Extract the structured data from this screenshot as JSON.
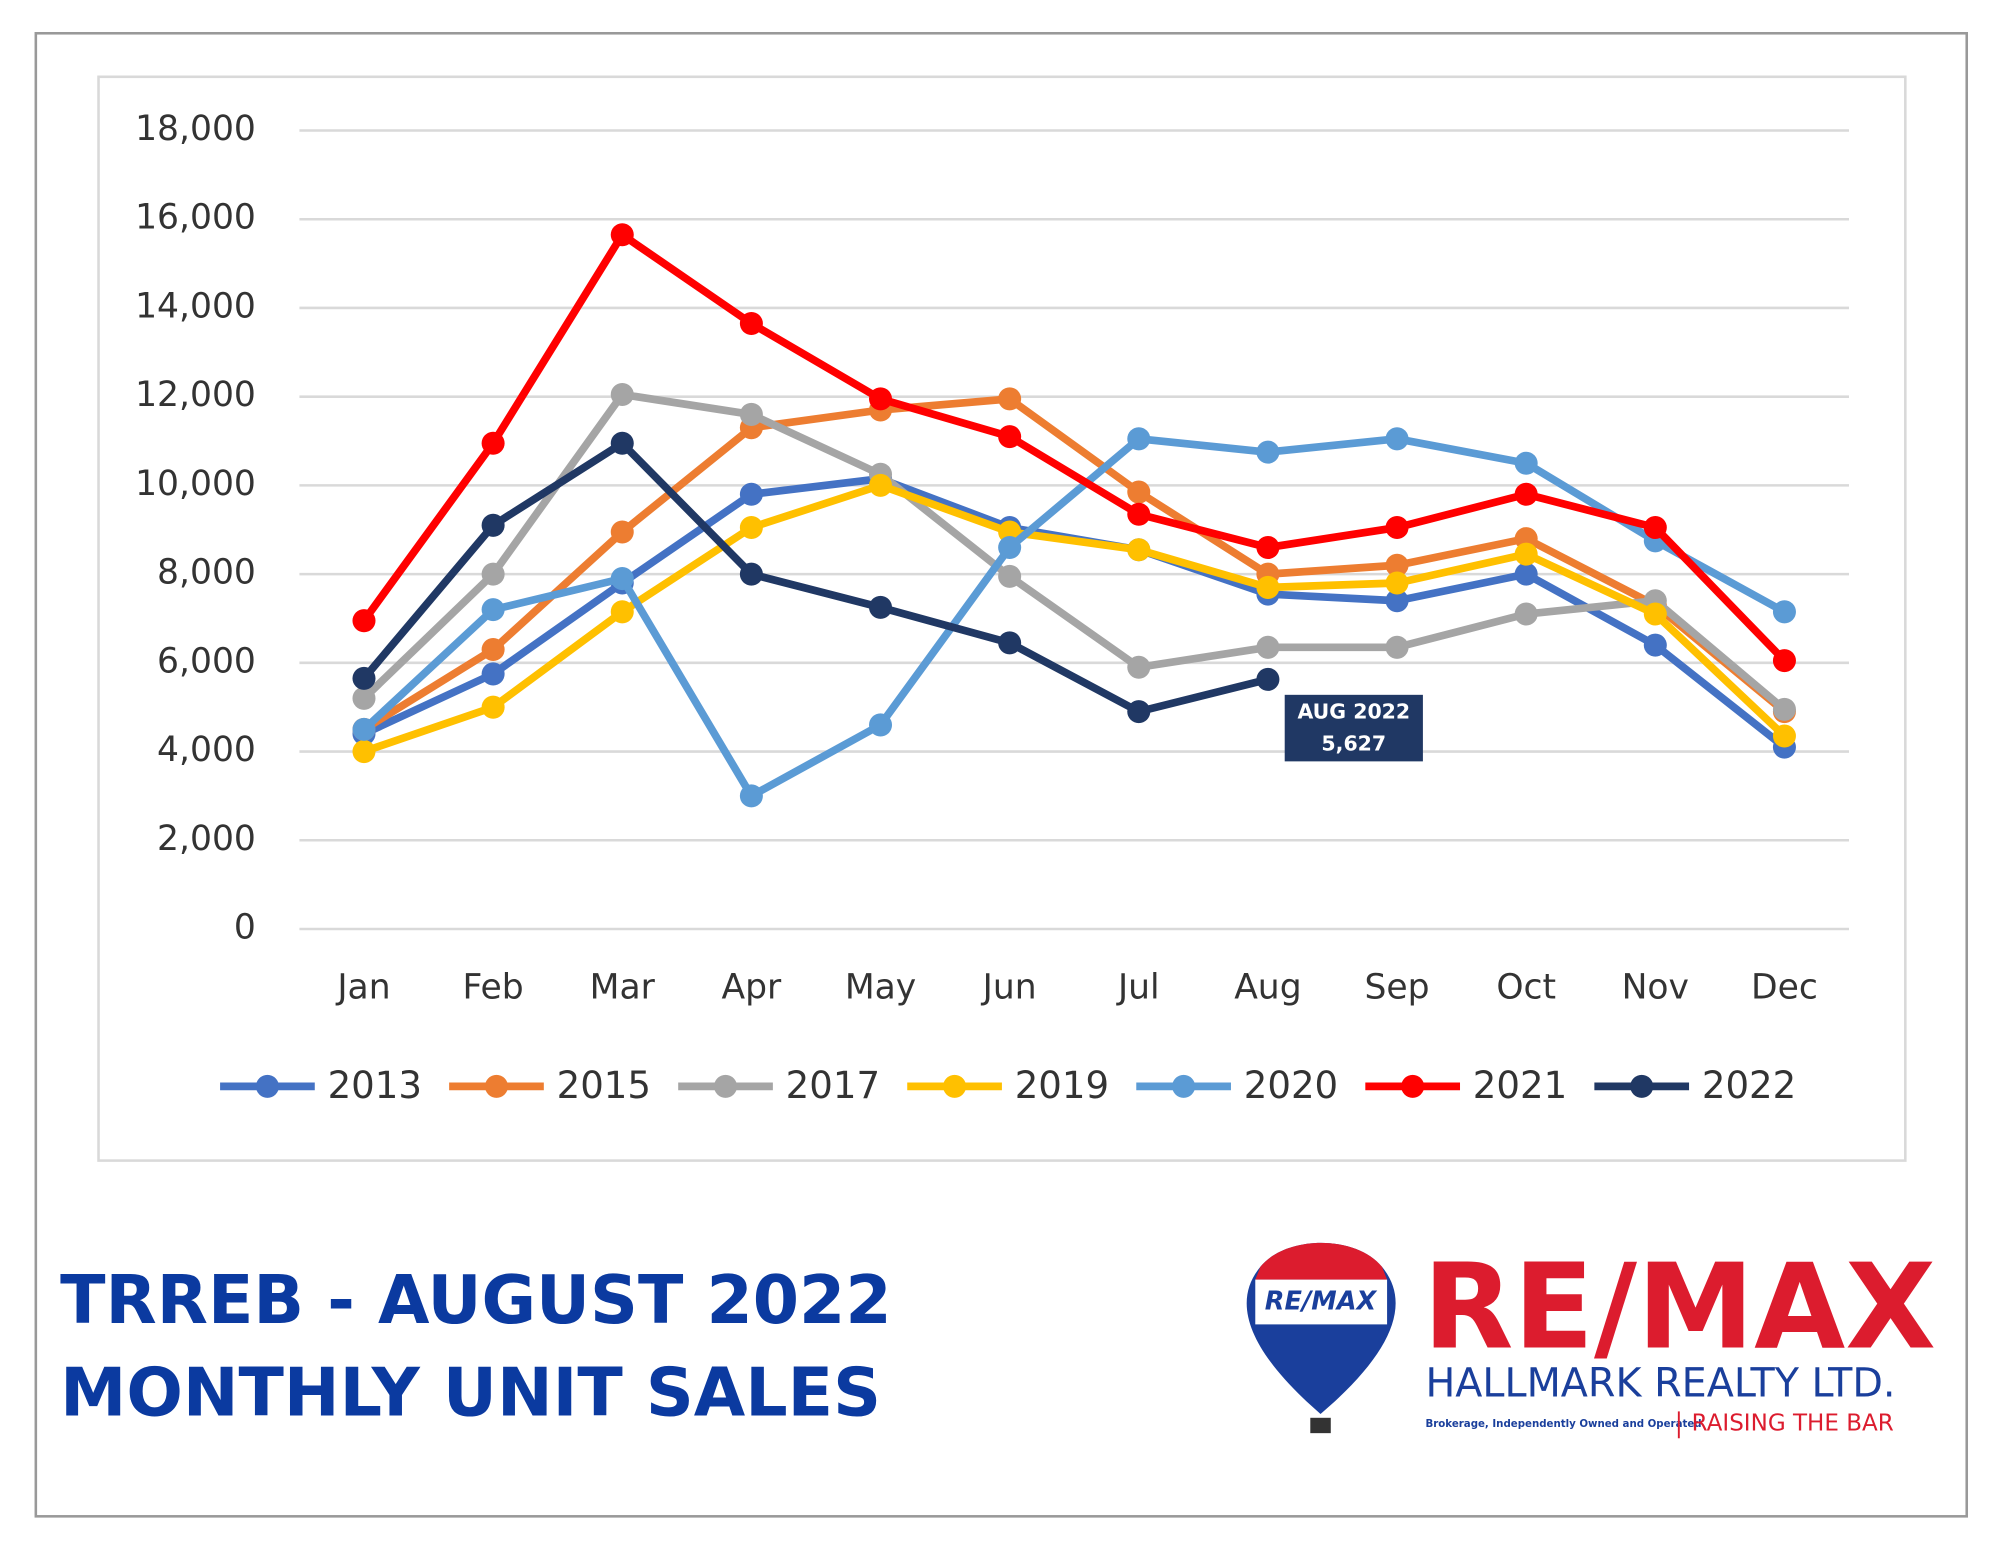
{
  "chart_data": {
    "type": "line",
    "categories": [
      "Jan",
      "Feb",
      "Mar",
      "Apr",
      "May",
      "Jun",
      "Jul",
      "Aug",
      "Sep",
      "Oct",
      "Nov",
      "Dec"
    ],
    "series": [
      {
        "name": "2013",
        "color": "#4472c4",
        "values": [
          4400,
          5750,
          7800,
          9800,
          10150,
          9050,
          8550,
          7550,
          7400,
          8000,
          6400,
          4100
        ]
      },
      {
        "name": "2015",
        "color": "#ed7d31",
        "values": [
          4500,
          6300,
          8950,
          11300,
          11700,
          11950,
          9850,
          8000,
          8200,
          8800,
          7300,
          4900
        ]
      },
      {
        "name": "2017",
        "color": "#a5a5a5",
        "values": [
          5200,
          8000,
          12050,
          11600,
          10250,
          7950,
          5900,
          6350,
          6350,
          7100,
          7400,
          4950
        ]
      },
      {
        "name": "2019",
        "color": "#ffc000",
        "values": [
          4000,
          5000,
          7150,
          9050,
          10000,
          8950,
          8550,
          7700,
          7800,
          8450,
          7100,
          4350
        ]
      },
      {
        "name": "2020",
        "color": "#5b9bd5",
        "values": [
          4500,
          7200,
          7900,
          3000,
          4600,
          8600,
          11050,
          10750,
          11050,
          10500,
          8750,
          7150
        ]
      },
      {
        "name": "2021",
        "color": "#ff0000",
        "values": [
          6950,
          10950,
          15650,
          13650,
          11950,
          11100,
          9350,
          8600,
          9050,
          9800,
          9050,
          6050
        ]
      },
      {
        "name": "2022",
        "color": "#203864",
        "values": [
          5650,
          9100,
          10950,
          8000,
          7250,
          6450,
          4900,
          5627,
          null,
          null,
          null,
          null
        ]
      }
    ],
    "ylim": [
      0,
      18000
    ],
    "yticks": [
      0,
      {
        "value": 2000,
        "label": "2,000"
      },
      {
        "value": 4000,
        "label": "4,000"
      },
      {
        "value": 6000,
        "label": "6,000"
      },
      {
        "value": 8000,
        "label": "8,000"
      },
      {
        "value": 10000,
        "label": "10,000"
      },
      {
        "value": 12000,
        "label": "12,000"
      },
      {
        "value": 14000,
        "label": "14,000"
      },
      {
        "value": 16000,
        "label": "16,000"
      },
      {
        "value": 18000,
        "label": "18,000"
      }
    ],
    "grid": true,
    "legend": "bottom",
    "annotation": {
      "lines": [
        "AUG 2022",
        "5,627"
      ]
    }
  },
  "page_title": [
    "TRREB - AUGUST 2022",
    "MONTHLY UNIT SALES"
  ],
  "logo": {
    "balloon": "RE/MAX",
    "brand": "RE/MAX",
    "office": "HALLMARK REALTY LTD.",
    "note": "Brokerage, Independently Owned and Operated",
    "slogan": "RAISING THE BAR"
  }
}
